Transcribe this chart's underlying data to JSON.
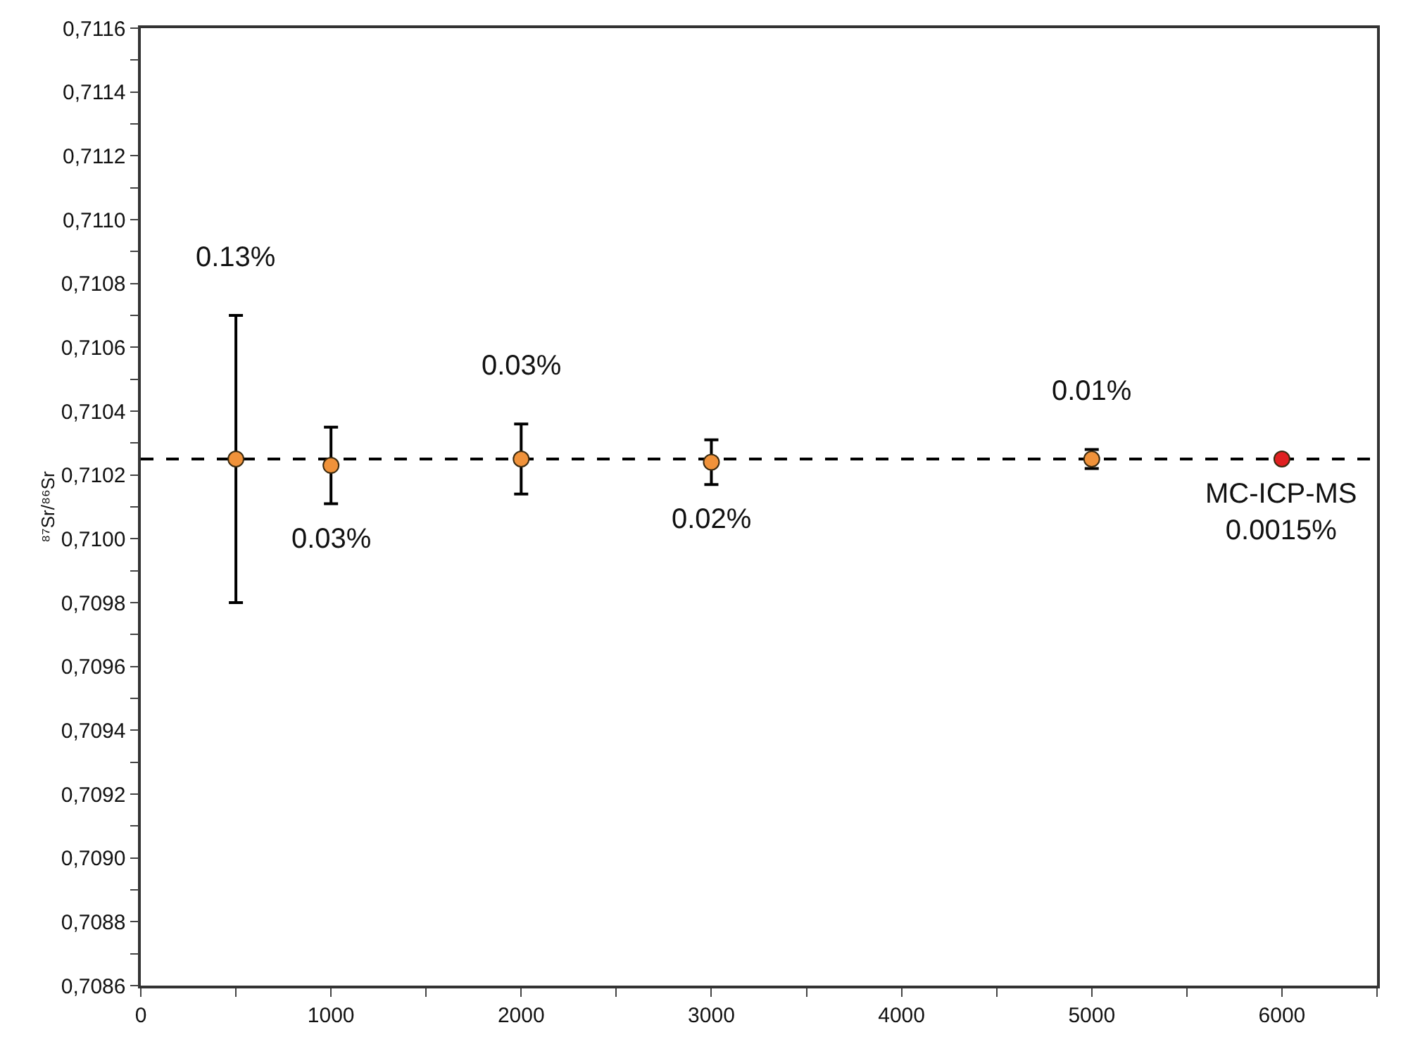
{
  "chart_data": {
    "type": "scatter",
    "ylabel": "⁸⁷Sr/⁸⁶Sr",
    "marker": "circle",
    "grid": false,
    "xlim": [
      0,
      6500
    ],
    "xticks": [
      0,
      {
        "value": 500,
        "label": null
      },
      1000,
      {
        "value": 1500,
        "label": null
      },
      2000,
      {
        "value": 2500,
        "label": null
      },
      3000,
      {
        "value": 3500,
        "label": null
      },
      4000,
      {
        "value": 4500,
        "label": null
      },
      5000,
      {
        "value": 5500,
        "label": null
      },
      6000,
      {
        "value": 6500,
        "label": null
      }
    ],
    "ylim": [
      0.7086,
      0.7116
    ],
    "yticks": [
      {
        "value": 0.7086,
        "label": "0,7086"
      },
      {
        "value": 0.7087,
        "label": null
      },
      {
        "value": 0.7088,
        "label": "0,7088"
      },
      {
        "value": 0.7089,
        "label": null
      },
      {
        "value": 0.709,
        "label": "0,7090"
      },
      {
        "value": 0.7091,
        "label": null
      },
      {
        "value": 0.7092,
        "label": "0,7092"
      },
      {
        "value": 0.7093,
        "label": null
      },
      {
        "value": 0.7094,
        "label": "0,7094"
      },
      {
        "value": 0.7095,
        "label": null
      },
      {
        "value": 0.7096,
        "label": "0,7096"
      },
      {
        "value": 0.7097,
        "label": null
      },
      {
        "value": 0.7098,
        "label": "0,7098"
      },
      {
        "value": 0.7099,
        "label": null
      },
      {
        "value": 0.71,
        "label": "0,7100"
      },
      {
        "value": 0.7101,
        "label": null
      },
      {
        "value": 0.7102,
        "label": "0,7102"
      },
      {
        "value": 0.7103,
        "label": null
      },
      {
        "value": 0.7104,
        "label": "0,7104"
      },
      {
        "value": 0.7105,
        "label": null
      },
      {
        "value": 0.7106,
        "label": "0,7106"
      },
      {
        "value": 0.7107,
        "label": null
      },
      {
        "value": 0.7108,
        "label": "0,7108"
      },
      {
        "value": 0.7109,
        "label": null
      },
      {
        "value": 0.711,
        "label": "0,7110"
      },
      {
        "value": 0.7111,
        "label": null
      },
      {
        "value": 0.7112,
        "label": "0,7112"
      },
      {
        "value": 0.7113,
        "label": null
      },
      {
        "value": 0.7114,
        "label": "0,7114"
      },
      {
        "value": 0.7115,
        "label": null
      },
      {
        "value": 0.7116,
        "label": "0,7116"
      }
    ],
    "series": [
      {
        "color": "#f0923a",
        "x": [
          500,
          1000,
          2000,
          3000,
          5000
        ],
        "values": [
          0.71025,
          0.71023,
          0.71025,
          0.71024,
          0.71025
        ],
        "errors": [
          0.00045,
          0.00012,
          0.00011,
          7e-05,
          3e-05
        ]
      },
      {
        "color": "#e02020",
        "x": [
          6000
        ],
        "values": [
          0.71025
        ]
      }
    ],
    "ref_lines": [
      {
        "axis": "y",
        "value": 0.71025,
        "line_style": "dashed",
        "color": "#000000"
      }
    ],
    "annotations": [
      "0.13%",
      "0.03%",
      "0.03%",
      "0.02%",
      "0.01%",
      "MC-ICP-MS\n0.0015%"
    ]
  }
}
